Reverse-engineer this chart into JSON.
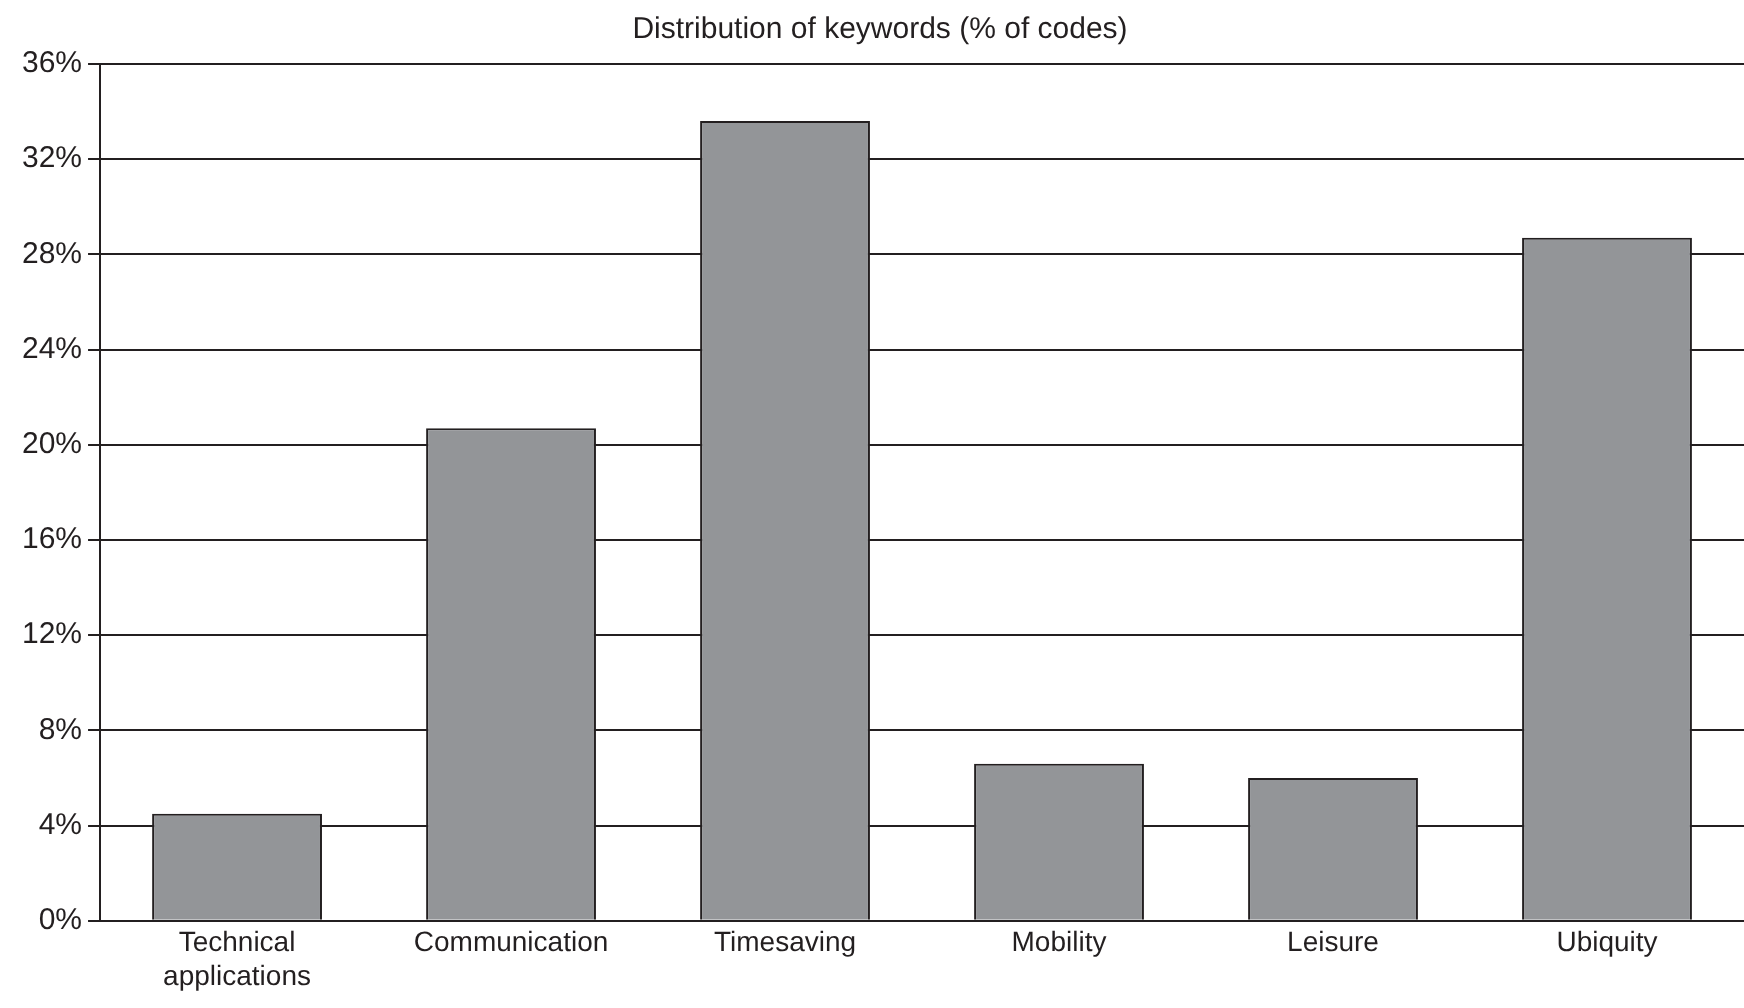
{
  "chart_data": {
    "type": "bar",
    "title": "Distribution of keywords (% of codes)",
    "categories": [
      "Technical applications",
      "Communication",
      "Timesaving",
      "Mobility",
      "Leisure",
      "Ubiquity"
    ],
    "values": [
      4.5,
      20.7,
      33.6,
      6.6,
      6.0,
      28.7
    ],
    "color": "#939598",
    "ylim": [
      0,
      36
    ],
    "yticks": [
      {
        "value": 0,
        "label": "0%"
      },
      {
        "value": 4,
        "label": "4%"
      },
      {
        "value": 8,
        "label": "8%"
      },
      {
        "value": 12,
        "label": "12%"
      },
      {
        "value": 16,
        "label": "16%"
      },
      {
        "value": 20,
        "label": "20%"
      },
      {
        "value": 24,
        "label": "24%"
      },
      {
        "value": 28,
        "label": "28%"
      },
      {
        "value": 32,
        "label": "32%"
      },
      {
        "value": 36,
        "label": "36%"
      }
    ],
    "grid": "y",
    "legend": false
  }
}
